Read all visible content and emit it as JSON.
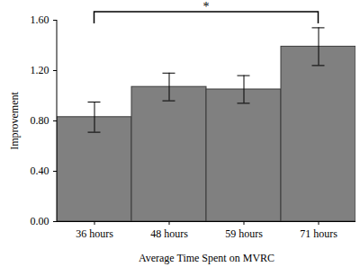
{
  "chart_data": {
    "type": "bar",
    "x_label": "Average Time Spent on MVRC",
    "y_label": "Improvement",
    "categories": [
      "36 hours",
      "48 hours",
      "59 hours",
      "71 hours"
    ],
    "values": [
      0.83,
      1.07,
      1.05,
      1.39
    ],
    "errors": [
      0.12,
      0.11,
      0.11,
      0.15
    ],
    "color": "#808080",
    "ylim": [
      0,
      1.6
    ],
    "yticks": [
      {
        "value": 0,
        "label": "0.00"
      },
      {
        "value": 0.4,
        "label": "0.40"
      },
      {
        "value": 0.8,
        "label": "0.80"
      },
      {
        "value": 1.2,
        "label": "1.20"
      },
      {
        "value": 1.6,
        "label": "1.60"
      }
    ],
    "annotations": [
      {
        "text": "*",
        "from": "36 hours",
        "to": "71 hours"
      }
    ]
  }
}
